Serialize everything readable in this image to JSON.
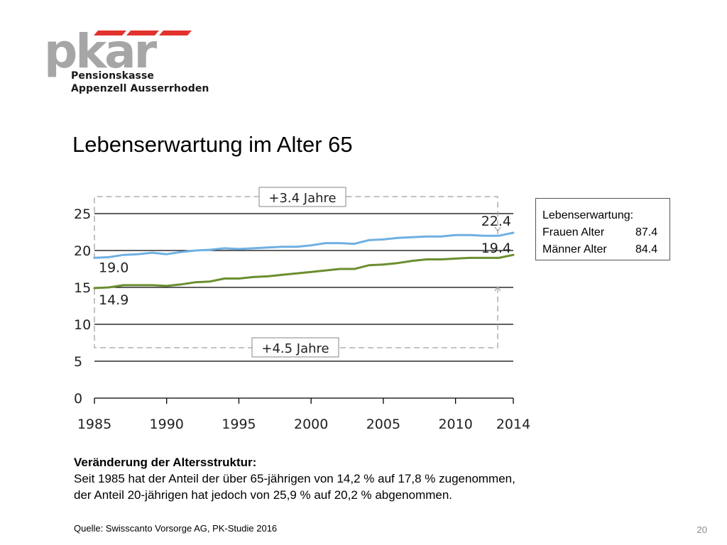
{
  "header": {
    "logo_text": "pkar",
    "org_line1": "Pensionskasse",
    "org_line2": "Appenzell Ausserrhoden",
    "colors": {
      "logo_gray": "#a6a6a6",
      "logo_red": "#e2322c"
    }
  },
  "slide": {
    "title": "Lebenserwartung im Alter 65",
    "legend": {
      "heading": "Lebenserwartung:",
      "rows": [
        {
          "label": "Frauen Alter",
          "value": "87.4"
        },
        {
          "label": "Männer Alter",
          "value": "84.4"
        }
      ]
    },
    "info": {
      "heading": "Veränderung der Altersstruktur:",
      "line1": "Seit 1985 hat der Anteil der über 65-jährigen von 14,2 % auf 17,8 % zugenommen,",
      "line2": "der Anteil 20-jährigen hat jedoch von 25,9 % auf 20,2 % abgenommen."
    },
    "source": "Quelle: Swisscanto Vorsorge AG, PK-Studie 2016",
    "page_number": "20"
  },
  "chart_data": {
    "type": "line",
    "title": "",
    "xlabel": "",
    "ylabel": "",
    "xlim": [
      1985,
      2014
    ],
    "ylim": [
      0,
      25
    ],
    "y_ticks": [
      "0",
      "5",
      "10",
      "15",
      "20",
      "25"
    ],
    "x_ticks": [
      "1985",
      "1990",
      "1995",
      "2000",
      "2005",
      "2010",
      "2014"
    ],
    "x_tick_values": [
      1985,
      1990,
      1995,
      2000,
      2005,
      2010,
      2014
    ],
    "grid": "horizontal",
    "colors": {
      "women": "#6fb0e2",
      "men": "#6b8e2f",
      "bracket": "#a0a0a0"
    },
    "x": [
      1985,
      1986,
      1987,
      1988,
      1989,
      1990,
      1991,
      1992,
      1993,
      1994,
      1995,
      1996,
      1997,
      1998,
      1999,
      2000,
      2001,
      2002,
      2003,
      2004,
      2005,
      2006,
      2007,
      2008,
      2009,
      2010,
      2011,
      2012,
      2013,
      2014
    ],
    "series": [
      {
        "values": [
          19.0,
          19.1,
          19.4,
          19.5,
          19.7,
          19.5,
          19.8,
          20.0,
          20.1,
          20.3,
          20.2,
          20.3,
          20.4,
          20.5,
          20.5,
          20.7,
          21.0,
          21.0,
          20.9,
          21.4,
          21.5,
          21.7,
          21.8,
          21.9,
          21.9,
          22.1,
          22.1,
          22.0,
          22.0,
          22.4
        ]
      },
      {
        "values": [
          14.9,
          15.0,
          15.3,
          15.3,
          15.3,
          15.2,
          15.4,
          15.7,
          15.8,
          16.2,
          16.2,
          16.4,
          16.5,
          16.7,
          16.9,
          17.1,
          17.3,
          17.5,
          17.5,
          18.0,
          18.1,
          18.3,
          18.6,
          18.8,
          18.8,
          18.9,
          19.0,
          19.0,
          19.0,
          19.4
        ]
      }
    ],
    "labels": {
      "women_start": "19.0",
      "women_end": "22.4",
      "men_start": "14.9",
      "men_end": "19.4"
    },
    "annotations": {
      "women_gain": "+3.4 Jahre",
      "men_gain": "+4.5 Jahre"
    }
  }
}
